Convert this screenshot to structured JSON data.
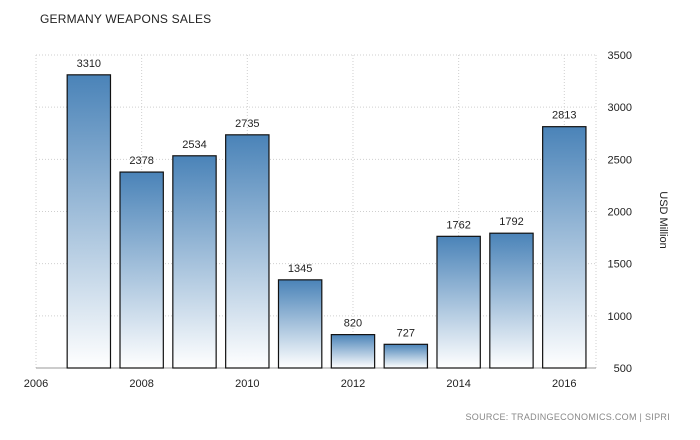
{
  "title": "GERMANY WEAPONS SALES",
  "source": "SOURCE: TRADINGECONOMICS.COM | SIPRI",
  "chart_data": {
    "type": "bar",
    "title": "GERMANY WEAPONS SALES",
    "ylabel": "USD Million",
    "xlabel": "",
    "x": [
      2007,
      2008,
      2009,
      2010,
      2011,
      2012,
      2013,
      2014,
      2015,
      2016
    ],
    "values": [
      3310,
      2378,
      2534,
      2735,
      1345,
      820,
      727,
      1762,
      1792,
      2813
    ],
    "data_labels": [
      "3310",
      "2378",
      "2534",
      "2735",
      "1345",
      "820",
      "727",
      "1762",
      "1792",
      "2813"
    ],
    "ylim": [
      500,
      3500
    ],
    "xlim": [
      2006,
      2016.6
    ],
    "x_ticks": [
      "2006",
      "2008",
      "2010",
      "2012",
      "2014",
      "2016"
    ],
    "y_ticks": [
      "500",
      "1000",
      "1500",
      "2000",
      "2500",
      "3000",
      "3500"
    ],
    "y_axis_side": "right",
    "grid": true,
    "bar_color_top": "#4a83b8",
    "bar_color_bottom": "#ffffff",
    "bar_border": "#111111"
  }
}
